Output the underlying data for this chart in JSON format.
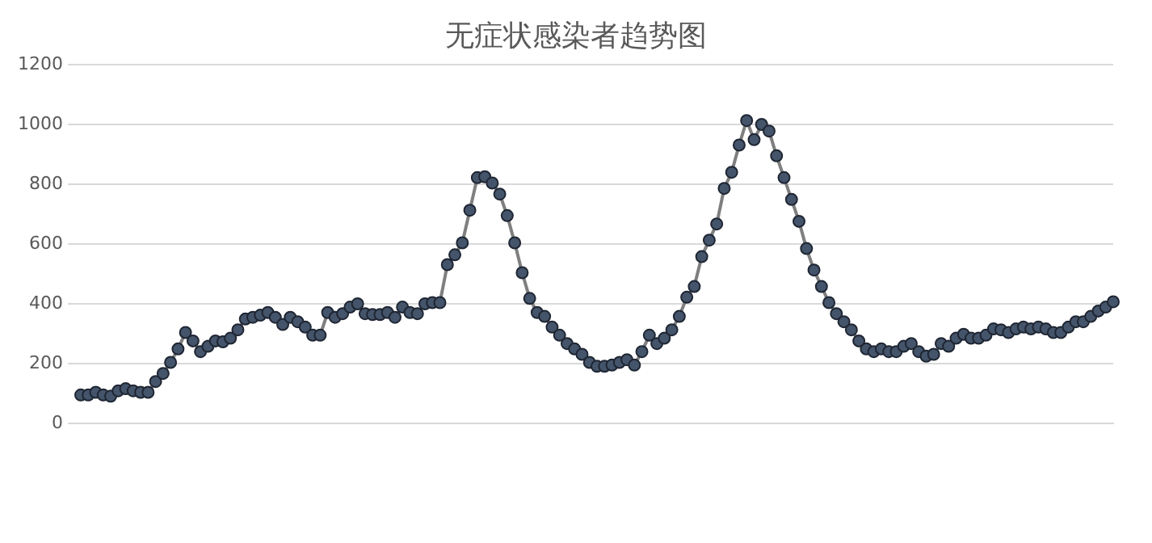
{
  "chart_data": {
    "type": "line",
    "title": "无症状感染者趋势图",
    "marker": "circle",
    "grid": "y",
    "legend": false,
    "tick_labels": "y",
    "ylim": [
      0,
      1200
    ],
    "yticks": [
      0,
      200,
      400,
      600,
      800,
      1000,
      1200
    ],
    "categories": [
      null,
      null,
      null,
      null,
      null,
      null,
      null,
      null,
      null,
      null,
      null,
      null,
      null,
      null,
      null,
      null,
      null,
      null,
      null,
      null,
      null,
      null,
      null,
      null,
      null,
      null,
      null,
      null,
      null,
      null,
      null,
      null,
      null,
      null,
      null,
      null,
      null,
      null,
      null,
      null,
      null,
      null,
      null,
      null,
      null,
      null,
      null,
      null,
      null,
      null,
      null,
      null,
      null,
      null,
      null,
      null,
      null,
      null,
      null,
      null,
      null,
      null,
      null,
      null,
      null,
      null,
      null,
      null,
      null,
      null,
      null,
      null,
      null,
      null,
      null,
      null,
      null,
      null,
      null,
      null,
      null,
      null,
      null,
      null,
      null,
      null,
      null,
      null,
      null,
      null,
      null,
      null,
      null,
      null,
      null,
      null,
      null,
      null,
      null,
      null,
      null,
      null,
      null,
      null,
      null,
      null,
      null,
      null,
      null,
      null,
      null,
      null,
      null,
      null,
      null,
      null,
      null,
      null,
      null,
      null,
      null,
      null,
      null,
      null,
      null,
      null,
      null,
      null,
      null,
      null,
      null,
      null,
      null,
      null,
      null,
      null,
      null,
      null,
      null
    ],
    "series": [
      {
        "color": "#44546a",
        "values": [
          95,
          95,
          104,
          95,
          91,
          109,
          116,
          109,
          104,
          104,
          140,
          167,
          204,
          249,
          304,
          276,
          240,
          258,
          276,
          273,
          285,
          313,
          349,
          355,
          362,
          371,
          355,
          331,
          355,
          340,
          322,
          295,
          295,
          371,
          355,
          367,
          389,
          400,
          367,
          364,
          364,
          371,
          355,
          389,
          371,
          367,
          400,
          404,
          404,
          531,
          564,
          604,
          713,
          822,
          825,
          804,
          767,
          695,
          604,
          504,
          418,
          371,
          358,
          322,
          295,
          267,
          249,
          231,
          204,
          191,
          191,
          195,
          204,
          213,
          195,
          240,
          295,
          267,
          285,
          313,
          358,
          422,
          458,
          558,
          613,
          667,
          786,
          840,
          931,
          1013,
          949,
          1000,
          978,
          895,
          822,
          749,
          676,
          585,
          513,
          458,
          404,
          367,
          340,
          313,
          276,
          249,
          240,
          249,
          240,
          240,
          258,
          267,
          240,
          225,
          231,
          267,
          258,
          285,
          298,
          285,
          285,
          295,
          316,
          313,
          304,
          316,
          322,
          316,
          322,
          316,
          304,
          304,
          322,
          340,
          340,
          358,
          376,
          389,
          407
        ]
      }
    ]
  }
}
